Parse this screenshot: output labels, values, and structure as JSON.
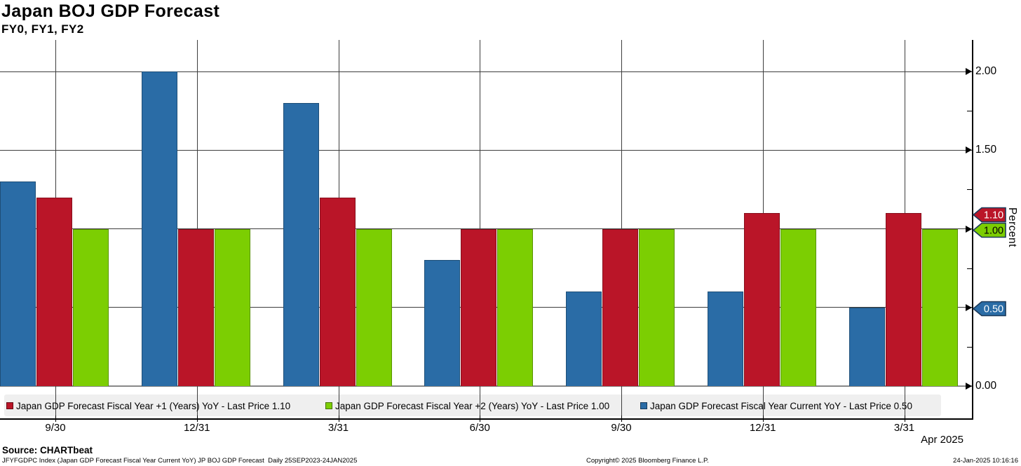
{
  "header": {
    "title": "Japan BOJ GDP Forecast",
    "subtitle": "FY0, FY1, FY2"
  },
  "chart_data": {
    "type": "bar",
    "title": "Japan BOJ GDP Forecast",
    "subtitle": "FY0, FY1, FY2",
    "categories": [
      "9/30",
      "12/31",
      "3/31",
      "6/30",
      "9/30",
      "12/31",
      "3/31"
    ],
    "series": [
      {
        "name": "Japan GDP Forecast Fiscal Year Current YoY",
        "color": "#2a6ca6",
        "values": [
          1.3,
          2.0,
          1.8,
          0.8,
          0.6,
          0.6,
          0.5
        ],
        "last_price": "0.50"
      },
      {
        "name": "Japan GDP Forecast Fiscal Year +1 (Years) YoY",
        "color": "#ba1528",
        "values": [
          1.2,
          1.0,
          1.2,
          1.0,
          1.0,
          1.1,
          1.1
        ],
        "last_price": "1.10"
      },
      {
        "name": "Japan GDP Forecast Fiscal Year +2 (Years) YoY",
        "color": "#7cce02",
        "values": [
          1.0,
          1.0,
          1.0,
          1.0,
          1.0,
          1.0,
          1.0
        ],
        "last_price": "1.00"
      }
    ],
    "ylabel": "Percent",
    "ylim": [
      0.0,
      2.2
    ],
    "yticks_major": [
      0.0,
      0.5,
      1.0,
      1.5,
      2.0
    ],
    "yticks_minor": [
      0.25,
      0.75,
      1.25,
      1.75
    ],
    "grid": true,
    "legend_position": "bottom"
  },
  "axis": {
    "y_labels": [
      {
        "text": "2.00",
        "value": 2.0
      },
      {
        "text": "1.50",
        "value": 1.5
      },
      {
        "text": "0.00",
        "value": 0.0
      }
    ],
    "badges": [
      {
        "text": "1.10",
        "value": 1.1,
        "color": "#ba1528",
        "text_color": "#ffffff"
      },
      {
        "text": "1.00",
        "value": 1.0,
        "color": "#7cce02",
        "text_color": "#000000"
      },
      {
        "text": "0.50",
        "value": 0.5,
        "color": "#2a6ca6",
        "text_color": "#ffffff"
      }
    ],
    "ylabel": "Percent",
    "end_label": "Apr 2025"
  },
  "legend": {
    "items": [
      {
        "label": "Japan GDP Forecast Fiscal Year +1 (Years) YoY - Last Price 1.10",
        "color": "#ba1528"
      },
      {
        "label": "Japan GDP Forecast Fiscal Year +2 (Years) YoY - Last Price 1.00",
        "color": "#7cce02"
      },
      {
        "label": "Japan GDP Forecast Fiscal Year Current YoY - Last Price 0.50",
        "color": "#2a6ca6"
      }
    ]
  },
  "footer": {
    "source": "Source: CHARTbeat",
    "description": "JFYFGDPC Index (Japan GDP Forecast Fiscal Year Current YoY) JP BOJ GDP Forecast  Daily 25SEP2023-24JAN2025",
    "copyright": "Copyright© 2025 Bloomberg Finance L.P.",
    "timestamp": "24-Jan-2025 10:16:16"
  }
}
